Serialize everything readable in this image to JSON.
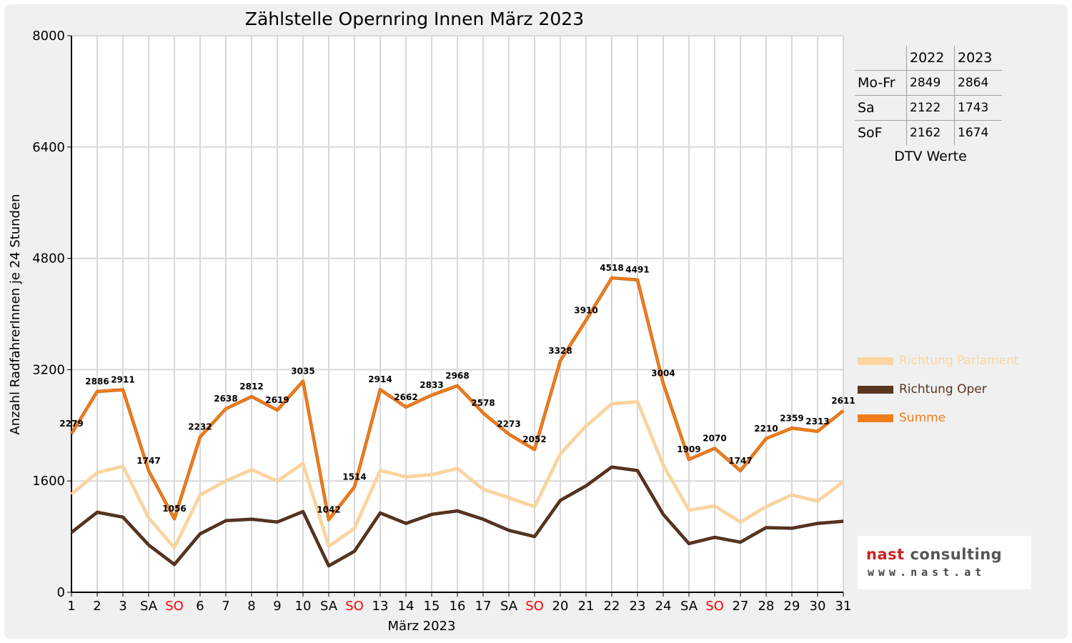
{
  "chart_data": {
    "type": "line",
    "title": "Zählstelle Opernring Innen März 2023",
    "xlabel": "März 2023",
    "ylabel": "Anzahl RadfahrerInnen je 24 Stunden",
    "ylim": [
      0,
      8000
    ],
    "yticks": [
      "0",
      "1600",
      "3200",
      "4800",
      "6400",
      "8000"
    ],
    "categories": [
      "1",
      "2",
      "3",
      "SA",
      "SO",
      "6",
      "7",
      "8",
      "9",
      "10",
      "SA",
      "SO",
      "13",
      "14",
      "15",
      "16",
      "17",
      "SA",
      "SO",
      "20",
      "21",
      "22",
      "23",
      "24",
      "SA",
      "SO",
      "27",
      "28",
      "29",
      "30",
      "31"
    ],
    "highlight_categories": [
      "SO"
    ],
    "grid": true,
    "series": [
      {
        "name": "Richtung Parlament",
        "color": "#fdd5a0",
        "values": [
          1410,
          1720,
          1810,
          1070,
          640,
          1400,
          1600,
          1760,
          1600,
          1850,
          660,
          920,
          1750,
          1660,
          1690,
          1780,
          1480,
          1360,
          1230,
          1990,
          2390,
          2710,
          2740,
          1830,
          1180,
          1240,
          1010,
          1230,
          1400,
          1310,
          1590
        ]
      },
      {
        "name": "Richtung Oper",
        "color": "#5a3520",
        "values": [
          860,
          1150,
          1080,
          680,
          400,
          840,
          1030,
          1050,
          1010,
          1160,
          380,
          590,
          1140,
          990,
          1120,
          1170,
          1050,
          890,
          800,
          1320,
          1530,
          1800,
          1750,
          1120,
          700,
          790,
          720,
          930,
          920,
          990,
          1020
        ]
      },
      {
        "name": "Summe",
        "color": "#f07d1a",
        "values": [
          2279,
          2886,
          2911,
          1747,
          1056,
          2232,
          2638,
          2812,
          2619,
          3035,
          1042,
          1514,
          2914,
          2662,
          2833,
          2968,
          2578,
          2273,
          2052,
          3328,
          3910,
          4518,
          4491,
          3004,
          1909,
          2070,
          1747,
          2210,
          2359,
          2313,
          2611
        ],
        "labels": [
          "2279",
          "2886",
          "2911",
          "1747",
          "1056",
          "2232",
          "2638",
          "2812",
          "2619",
          "3035",
          "1042",
          "1514",
          "2914",
          "2662",
          "2833",
          "2968",
          "2578",
          "2273",
          "2052",
          "3328",
          "3910",
          "4518",
          "4491",
          "3004",
          "1909",
          "2070",
          "1747",
          "2210",
          "2359",
          "2313",
          "2611"
        ]
      }
    ],
    "legend_position": "right"
  },
  "dtv_table": {
    "years": [
      "2022",
      "2023"
    ],
    "rows": [
      {
        "label": "Mo-Fr",
        "v2022": "2849",
        "v2023": "2864"
      },
      {
        "label": "Sa",
        "v2022": "2122",
        "v2023": "1743"
      },
      {
        "label": "SoF",
        "v2022": "2162",
        "v2023": "1674"
      }
    ],
    "caption": "DTV Werte"
  },
  "logo": {
    "name_part1": "nast",
    "name_part2": " consulting",
    "url": "www.nast.at"
  },
  "colors": {
    "sunday_red": "#ff0000",
    "legend_parlament": "#fdd5a0",
    "legend_oper": "#5a3520",
    "legend_summe": "#f07d1a"
  }
}
